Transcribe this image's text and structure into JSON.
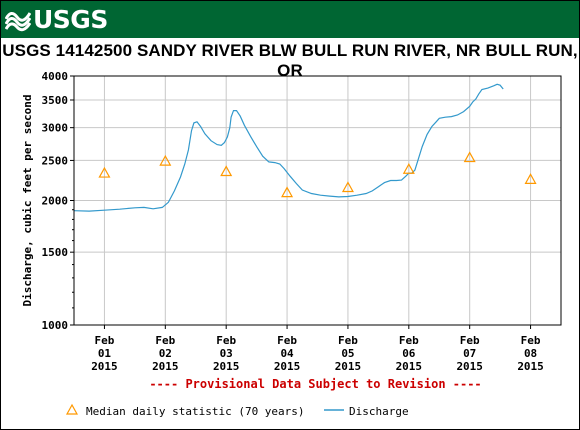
{
  "header": {
    "logo_text": "USGS",
    "title": "USGS 14142500 SANDY RIVER BLW BULL RUN RIVER, NR BULL RUN, OR"
  },
  "colors": {
    "banner": "#006633",
    "discharge_line": "#3399cc",
    "median_marker": "#ff9900",
    "provisional_text": "#cc0000",
    "grid": "#c8c8c8"
  },
  "chart_data": {
    "type": "line",
    "title": "USGS 14142500 SANDY RIVER BLW BULL RUN RIVER, NR BULL RUN, OR",
    "xlabel": "",
    "ylabel": "Discharge, cubic feet per second",
    "y_scale": "log",
    "ylim": [
      1000,
      4000
    ],
    "y_ticks": [
      1000,
      1500,
      2000,
      2500,
      3000,
      3500,
      4000
    ],
    "x_ticks": [
      {
        "x": 1,
        "label": [
          "Feb",
          "01",
          "2015"
        ]
      },
      {
        "x": 2,
        "label": [
          "Feb",
          "02",
          "2015"
        ]
      },
      {
        "x": 3,
        "label": [
          "Feb",
          "03",
          "2015"
        ]
      },
      {
        "x": 4,
        "label": [
          "Feb",
          "04",
          "2015"
        ]
      },
      {
        "x": 5,
        "label": [
          "Feb",
          "05",
          "2015"
        ]
      },
      {
        "x": 6,
        "label": [
          "Feb",
          "06",
          "2015"
        ]
      },
      {
        "x": 7,
        "label": [
          "Feb",
          "07",
          "2015"
        ]
      },
      {
        "x": 8,
        "label": [
          "Feb",
          "08",
          "2015"
        ]
      }
    ],
    "xlim": [
      0.5,
      8.5
    ],
    "grid": true,
    "annotation": "---- Provisional Data Subject to Revision ----",
    "series": [
      {
        "name": "Discharge",
        "kind": "line",
        "points": [
          [
            0.5,
            1890
          ],
          [
            0.75,
            1885
          ],
          [
            1.0,
            1895
          ],
          [
            1.25,
            1905
          ],
          [
            1.5,
            1920
          ],
          [
            1.65,
            1925
          ],
          [
            1.8,
            1910
          ],
          [
            1.95,
            1925
          ],
          [
            2.05,
            1980
          ],
          [
            2.15,
            2110
          ],
          [
            2.25,
            2280
          ],
          [
            2.32,
            2450
          ],
          [
            2.38,
            2650
          ],
          [
            2.43,
            2950
          ],
          [
            2.47,
            3080
          ],
          [
            2.52,
            3100
          ],
          [
            2.58,
            3020
          ],
          [
            2.65,
            2900
          ],
          [
            2.75,
            2790
          ],
          [
            2.85,
            2730
          ],
          [
            2.92,
            2720
          ],
          [
            2.97,
            2760
          ],
          [
            3.02,
            2850
          ],
          [
            3.06,
            3000
          ],
          [
            3.08,
            3180
          ],
          [
            3.12,
            3300
          ],
          [
            3.17,
            3300
          ],
          [
            3.23,
            3200
          ],
          [
            3.3,
            3040
          ],
          [
            3.4,
            2860
          ],
          [
            3.5,
            2700
          ],
          [
            3.6,
            2560
          ],
          [
            3.7,
            2480
          ],
          [
            3.8,
            2470
          ],
          [
            3.88,
            2450
          ],
          [
            3.95,
            2390
          ],
          [
            4.05,
            2290
          ],
          [
            4.15,
            2200
          ],
          [
            4.25,
            2120
          ],
          [
            4.4,
            2080
          ],
          [
            4.55,
            2060
          ],
          [
            4.7,
            2050
          ],
          [
            4.85,
            2040
          ],
          [
            5.0,
            2045
          ],
          [
            5.15,
            2060
          ],
          [
            5.3,
            2080
          ],
          [
            5.4,
            2110
          ],
          [
            5.5,
            2160
          ],
          [
            5.6,
            2210
          ],
          [
            5.7,
            2235
          ],
          [
            5.8,
            2235
          ],
          [
            5.88,
            2240
          ],
          [
            5.95,
            2290
          ],
          [
            6.0,
            2330
          ],
          [
            6.05,
            2330
          ],
          [
            6.1,
            2370
          ],
          [
            6.15,
            2500
          ],
          [
            6.22,
            2700
          ],
          [
            6.3,
            2890
          ],
          [
            6.38,
            3020
          ],
          [
            6.45,
            3100
          ],
          [
            6.5,
            3160
          ],
          [
            6.6,
            3180
          ],
          [
            6.7,
            3190
          ],
          [
            6.8,
            3220
          ],
          [
            6.9,
            3280
          ],
          [
            7.0,
            3380
          ],
          [
            7.05,
            3460
          ],
          [
            7.1,
            3520
          ],
          [
            7.15,
            3620
          ],
          [
            7.2,
            3710
          ],
          [
            7.3,
            3740
          ],
          [
            7.4,
            3790
          ],
          [
            7.45,
            3820
          ],
          [
            7.5,
            3800
          ],
          [
            7.55,
            3720
          ]
        ]
      },
      {
        "name": "Median daily statistic (70 years)",
        "kind": "marker",
        "points": [
          [
            1,
            2330
          ],
          [
            2,
            2490
          ],
          [
            3,
            2350
          ],
          [
            4,
            2090
          ],
          [
            5,
            2150
          ],
          [
            6,
            2380
          ],
          [
            7,
            2540
          ],
          [
            8,
            2250
          ]
        ]
      }
    ],
    "legend": [
      {
        "label": "Median daily statistic (70 years)",
        "kind": "marker"
      },
      {
        "label": "Discharge",
        "kind": "line"
      }
    ]
  }
}
